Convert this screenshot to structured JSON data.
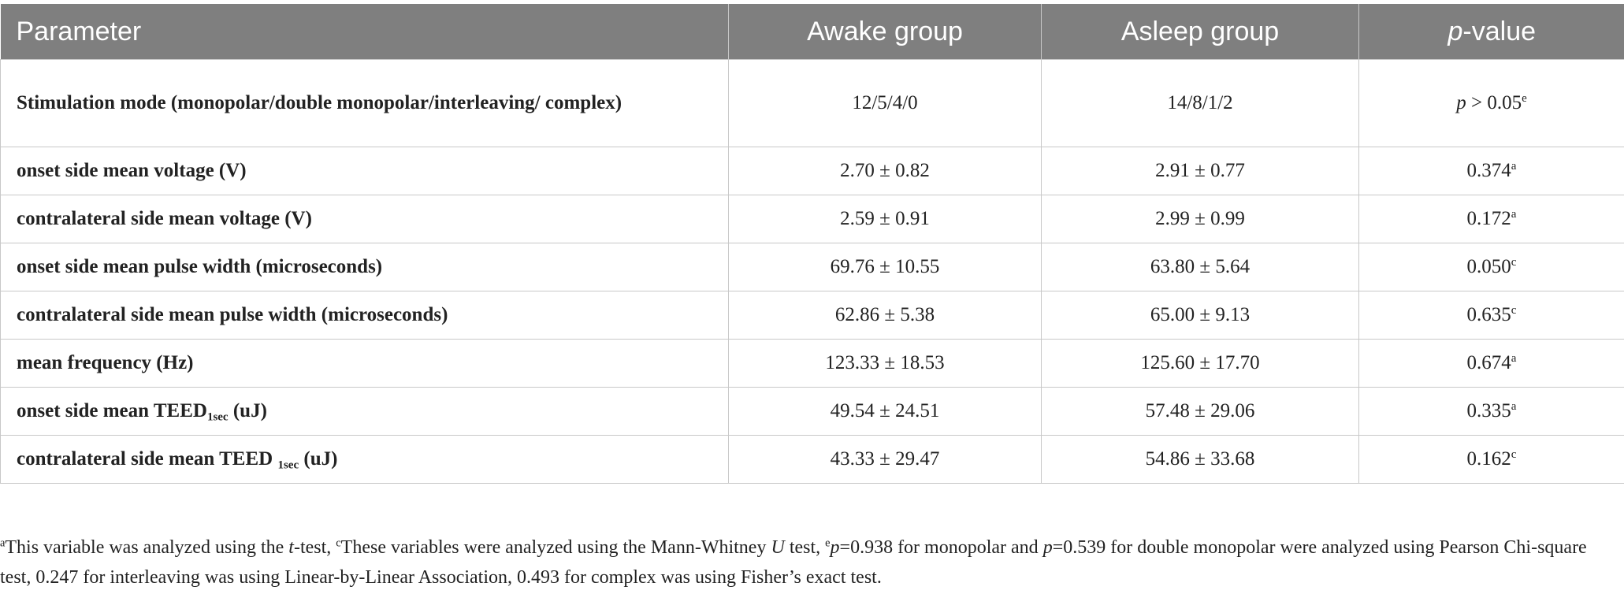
{
  "table": {
    "header": [
      "Parameter",
      "Awake group",
      "Asleep group",
      [
        {
          "i": "p"
        },
        "-value"
      ]
    ],
    "rows": [
      [
        [
          "Stimulation mode (monopolar/double monopolar/interleaving/ complex)"
        ],
        "12/5/4/0",
        "14/8/1/2",
        [
          {
            "i": "p"
          },
          " > 0.05",
          {
            "sup": "e"
          }
        ]
      ],
      [
        [
          "onset side mean voltage (V)"
        ],
        "2.70 ± 0.82",
        "2.91 ± 0.77",
        [
          "0.374",
          {
            "sup": "a"
          }
        ]
      ],
      [
        [
          "contralateral side mean voltage (V)"
        ],
        "2.59 ± 0.91",
        "2.99 ± 0.99",
        [
          "0.172",
          {
            "sup": "a"
          }
        ]
      ],
      [
        [
          "onset side mean pulse width (microseconds)"
        ],
        "69.76 ± 10.55",
        "63.80 ± 5.64",
        [
          "0.050",
          {
            "sup": "c"
          }
        ]
      ],
      [
        [
          "contralateral side mean pulse width (microseconds)"
        ],
        "62.86 ± 5.38",
        "65.00 ± 9.13",
        [
          "0.635",
          {
            "sup": "c"
          }
        ]
      ],
      [
        [
          "mean frequency (Hz)"
        ],
        "123.33 ± 18.53",
        "125.60 ± 17.70",
        [
          "0.674",
          {
            "sup": "a"
          }
        ]
      ],
      [
        [
          "onset side mean TEED",
          {
            "sub": "1sec"
          },
          " (uJ)"
        ],
        "49.54 ± 24.51",
        "57.48 ± 29.06",
        [
          "0.335",
          {
            "sup": "a"
          }
        ]
      ],
      [
        [
          "contralateral side mean TEED ",
          {
            "sub": "1sec"
          },
          " (uJ)"
        ],
        "43.33 ± 29.47",
        "54.86 ± 33.68",
        [
          "0.162",
          {
            "sup": "c"
          }
        ]
      ]
    ]
  },
  "footnote": [
    {
      "sup": "a"
    },
    "This variable was analyzed using the ",
    {
      "i": "t"
    },
    "-test, ",
    {
      "sup": "c"
    },
    "These variables were analyzed using the Mann-Whitney ",
    {
      "i": "U"
    },
    " test, ",
    {
      "sup": "e"
    },
    {
      "i": "p"
    },
    "=0.938 for monopolar and ",
    {
      "i": "p"
    },
    "=0.539 for double monopolar were analyzed using Pearson Chi-square test, 0.247 for interleaving was using Linear-by-Linear Association, 0.493 for complex was using Fisher’s exact test."
  ]
}
